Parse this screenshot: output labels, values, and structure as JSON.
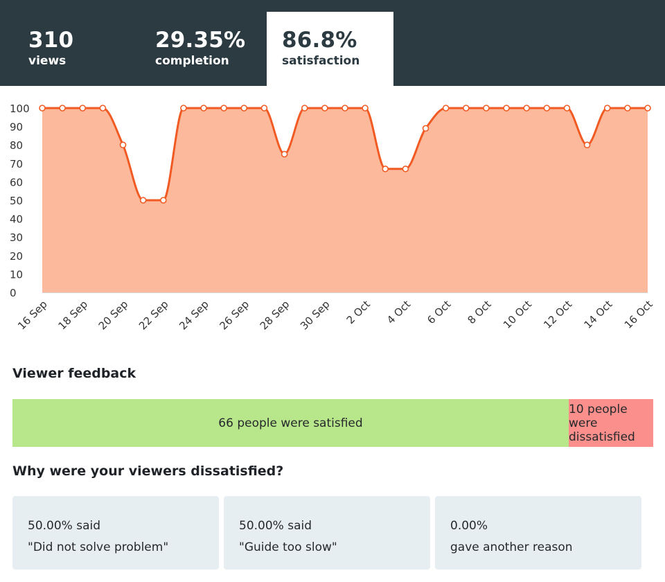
{
  "stats": [
    {
      "value": "310",
      "label": "views"
    },
    {
      "value": "29.35%",
      "label": "completion"
    },
    {
      "value": "86.8%",
      "label": "satisfaction"
    }
  ],
  "chart_data": {
    "type": "area",
    "title": "",
    "xlabel": "",
    "ylabel": "",
    "ylim": [
      0,
      100
    ],
    "yticks": [
      0,
      10,
      20,
      30,
      40,
      50,
      60,
      70,
      80,
      90,
      100
    ],
    "x": [
      "16 Sep",
      "17 Sep",
      "18 Sep",
      "19 Sep",
      "20 Sep",
      "21 Sep",
      "22 Sep",
      "23 Sep",
      "24 Sep",
      "25 Sep",
      "26 Sep",
      "27 Sep",
      "28 Sep",
      "29 Sep",
      "30 Sep",
      "1 Oct",
      "2 Oct",
      "3 Oct",
      "4 Oct",
      "5 Oct",
      "6 Oct",
      "7 Oct",
      "8 Oct",
      "9 Oct",
      "10 Oct",
      "11 Oct",
      "12 Oct",
      "13 Oct",
      "14 Oct",
      "15 Oct",
      "16 Oct"
    ],
    "xtick_labels": [
      "16 Sep",
      "18 Sep",
      "20 Sep",
      "22 Sep",
      "24 Sep",
      "26 Sep",
      "28 Sep",
      "30 Sep",
      "2 Oct",
      "4 Oct",
      "6 Oct",
      "8 Oct",
      "10 Oct",
      "12 Oct",
      "14 Oct",
      "16 Oct"
    ],
    "series": [
      {
        "values": [
          100,
          100,
          100,
          100,
          80,
          50,
          50,
          100,
          100,
          100,
          100,
          100,
          75,
          100,
          100,
          100,
          100,
          67,
          67,
          89,
          100,
          100,
          100,
          100,
          100,
          100,
          100,
          80,
          100,
          100,
          100
        ]
      }
    ],
    "colors": {
      "line": "#f25a23",
      "fill": "#fcb99b",
      "point_fill": "#ffffff",
      "axis": "#d4d4d4"
    },
    "grid": false,
    "legend": "none"
  },
  "feedback": {
    "heading": "Viewer feedback",
    "satisfied_label": "66 people were satisfied",
    "dissatisfied_label": "10 people were dissatisfied",
    "satisfied_count": 66,
    "dissatisfied_count": 10,
    "colors": {
      "satisfied": "#b8e68a",
      "dissatisfied": "#fb8f8c"
    }
  },
  "dissatisfied": {
    "heading": "Why were your viewers dissatisfied?",
    "reasons": [
      {
        "line1": "50.00% said",
        "line2": "\"Did not solve problem\""
      },
      {
        "line1": "50.00% said",
        "line2": "\"Guide too slow\""
      },
      {
        "line1": "0.00%",
        "line2": "gave another reason"
      }
    ]
  }
}
